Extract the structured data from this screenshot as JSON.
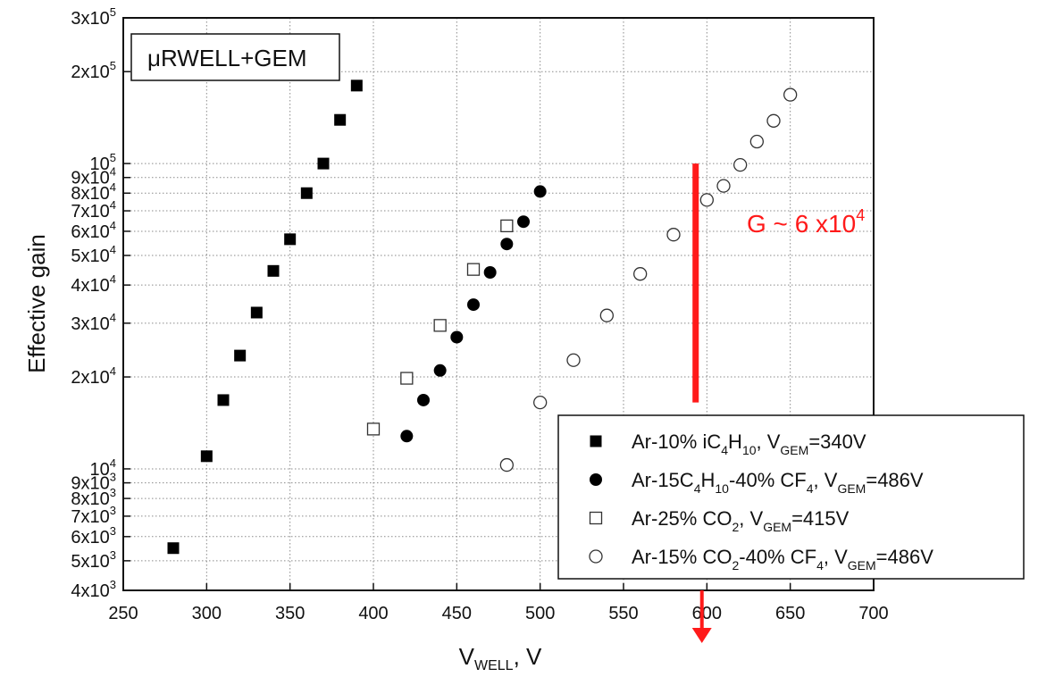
{
  "chart_data": {
    "type": "scatter",
    "title_box": "μRWELL+GEM",
    "xlabel": {
      "main": "V",
      "sub": "WELL",
      "tail": ", V"
    },
    "ylabel": "Effective gain",
    "xlim": [
      250,
      700
    ],
    "ylim": [
      4000,
      300000
    ],
    "yscale": "log",
    "grid": true,
    "legend_position": "bottom-right",
    "xticks": [
      250,
      300,
      350,
      400,
      450,
      500,
      550,
      600,
      650,
      700
    ],
    "yticks": [
      {
        "value": 4000,
        "mant": "4x10",
        "exp": "3"
      },
      {
        "value": 5000,
        "mant": "5x10",
        "exp": "3"
      },
      {
        "value": 6000,
        "mant": "6x10",
        "exp": "3"
      },
      {
        "value": 7000,
        "mant": "7x10",
        "exp": "3"
      },
      {
        "value": 8000,
        "mant": "8x10",
        "exp": "3"
      },
      {
        "value": 9000,
        "mant": "9x10",
        "exp": "3"
      },
      {
        "value": 10000,
        "mant": "10",
        "exp": "4"
      },
      {
        "value": 20000,
        "mant": "2x10",
        "exp": "4"
      },
      {
        "value": 30000,
        "mant": "3x10",
        "exp": "4"
      },
      {
        "value": 40000,
        "mant": "4x10",
        "exp": "4"
      },
      {
        "value": 50000,
        "mant": "5x10",
        "exp": "4"
      },
      {
        "value": 60000,
        "mant": "6x10",
        "exp": "4"
      },
      {
        "value": 70000,
        "mant": "7x10",
        "exp": "4"
      },
      {
        "value": 80000,
        "mant": "8x10",
        "exp": "4"
      },
      {
        "value": 90000,
        "mant": "9x10",
        "exp": "4"
      },
      {
        "value": 100000,
        "mant": "10",
        "exp": "5"
      },
      {
        "value": 200000,
        "mant": "2x10",
        "exp": "5"
      },
      {
        "value": 300000,
        "mant": "3x10",
        "exp": "5"
      }
    ],
    "series": [
      {
        "marker": "filled-square",
        "legend": [
          {
            "t": "Ar-10% iC"
          },
          {
            "t": "4",
            "sub": true
          },
          {
            "t": "H"
          },
          {
            "t": "10",
            "sub": true
          },
          {
            "t": ", V"
          },
          {
            "t": "GEM",
            "sub": true
          },
          {
            "t": "=340V"
          }
        ],
        "x": [
          280,
          300,
          310,
          320,
          330,
          340,
          350,
          360,
          370,
          380,
          390
        ],
        "y": [
          5500,
          11000,
          16800,
          23500,
          32500,
          44500,
          56500,
          80000,
          100000,
          139000,
          180000
        ]
      },
      {
        "marker": "filled-circle",
        "legend": [
          {
            "t": "Ar-15C"
          },
          {
            "t": "4",
            "sub": true
          },
          {
            "t": "H"
          },
          {
            "t": "10",
            "sub": true
          },
          {
            "t": "-40% CF"
          },
          {
            "t": "4",
            "sub": true
          },
          {
            "t": ", V"
          },
          {
            "t": "GEM",
            "sub": true
          },
          {
            "t": "=486V"
          }
        ],
        "x": [
          420,
          430,
          440,
          450,
          460,
          470,
          480,
          490,
          500
        ],
        "y": [
          12800,
          16800,
          21000,
          27000,
          34500,
          44000,
          54500,
          64500,
          81000
        ]
      },
      {
        "marker": "open-square",
        "legend": [
          {
            "t": "Ar-25% CO"
          },
          {
            "t": "2",
            "sub": true
          },
          {
            "t": ", V"
          },
          {
            "t": "GEM",
            "sub": true
          },
          {
            "t": "=415V"
          }
        ],
        "x": [
          400,
          420,
          440,
          460,
          480
        ],
        "y": [
          13500,
          19800,
          29500,
          45000,
          62500
        ]
      },
      {
        "marker": "open-circle",
        "legend": [
          {
            "t": "Ar-15% CO"
          },
          {
            "t": "2",
            "sub": true
          },
          {
            "t": "-40% CF"
          },
          {
            "t": "4",
            "sub": true
          },
          {
            "t": ", V"
          },
          {
            "t": "GEM",
            "sub": true
          },
          {
            "t": "=486V"
          }
        ],
        "x": [
          480,
          500,
          520,
          540,
          560,
          580,
          600,
          610,
          620,
          630,
          640,
          650
        ],
        "y": [
          10300,
          16500,
          22700,
          31800,
          43500,
          58500,
          76000,
          84500,
          99000,
          118000,
          138000,
          168000
        ]
      }
    ],
    "annotation": {
      "text_main": "G ~ 6 x10",
      "text_exp": "4",
      "color": "#ff1a1a",
      "marker_x": 597,
      "line_from_y": 100000,
      "line_to_y": 16500
    }
  }
}
